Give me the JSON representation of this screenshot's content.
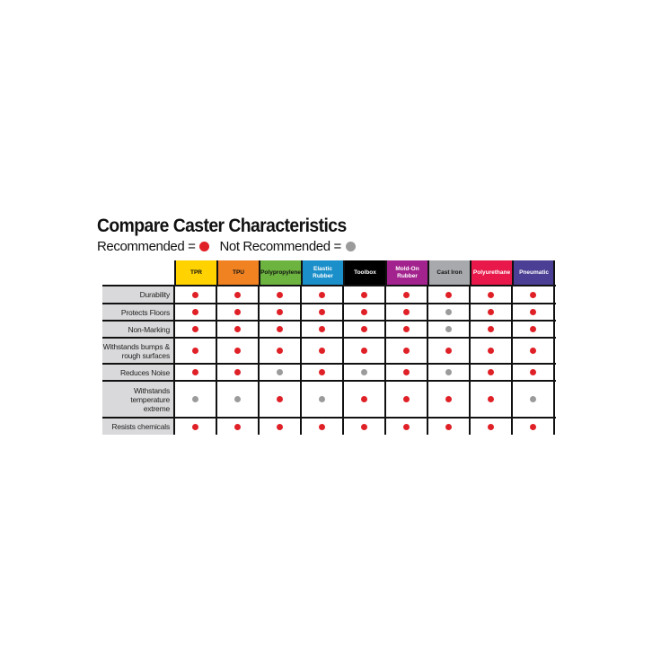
{
  "title": "Compare Caster Characteristics",
  "legend": {
    "recommended_label": "Recommended =",
    "not_recommended_label": "Not Recommended =",
    "recommended_color": "#e02027",
    "not_recommended_color": "#9b9b9b"
  },
  "columns": [
    {
      "label": "TPR",
      "color": "#ffd200",
      "text_color": "#111"
    },
    {
      "label": "TPU",
      "color": "#f08222",
      "text_color": "#111"
    },
    {
      "label": "Polypropylene",
      "color": "#6cb33f",
      "text_color": "#111"
    },
    {
      "label": "Elastic Rubber",
      "color": "#1a8fc9",
      "text_color": "#fff"
    },
    {
      "label": "Toolbox",
      "color": "#000000",
      "text_color": "#fff"
    },
    {
      "label": "Mold-On Rubber",
      "color": "#a3238e",
      "text_color": "#fff"
    },
    {
      "label": "Cast Iron",
      "color": "#a7a9ac",
      "text_color": "#111"
    },
    {
      "label": "Polyurethane",
      "color": "#e8194a",
      "text_color": "#fff"
    },
    {
      "label": "Pneumatic",
      "color": "#4a3f94",
      "text_color": "#fff"
    }
  ],
  "rows": [
    {
      "label": "Durability",
      "values": [
        "R",
        "R",
        "R",
        "R",
        "R",
        "R",
        "R",
        "R",
        "R"
      ]
    },
    {
      "label": "Protects Floors",
      "values": [
        "R",
        "R",
        "R",
        "R",
        "R",
        "R",
        "N",
        "R",
        "R"
      ]
    },
    {
      "label": "Non-Marking",
      "values": [
        "R",
        "R",
        "R",
        "R",
        "R",
        "R",
        "N",
        "R",
        "R"
      ]
    },
    {
      "label": "Withstands bumps & rough surfaces",
      "values": [
        "R",
        "R",
        "R",
        "R",
        "R",
        "R",
        "R",
        "R",
        "R"
      ]
    },
    {
      "label": "Reduces Noise",
      "values": [
        "R",
        "R",
        "N",
        "R",
        "N",
        "R",
        "N",
        "R",
        "R"
      ]
    },
    {
      "label": "Withstands temperature extreme",
      "values": [
        "N",
        "N",
        "R",
        "N",
        "R",
        "R",
        "R",
        "R",
        "N"
      ]
    },
    {
      "label": "Resists chemicals",
      "values": [
        "R",
        "R",
        "R",
        "R",
        "R",
        "R",
        "R",
        "R",
        "R"
      ]
    }
  ]
}
